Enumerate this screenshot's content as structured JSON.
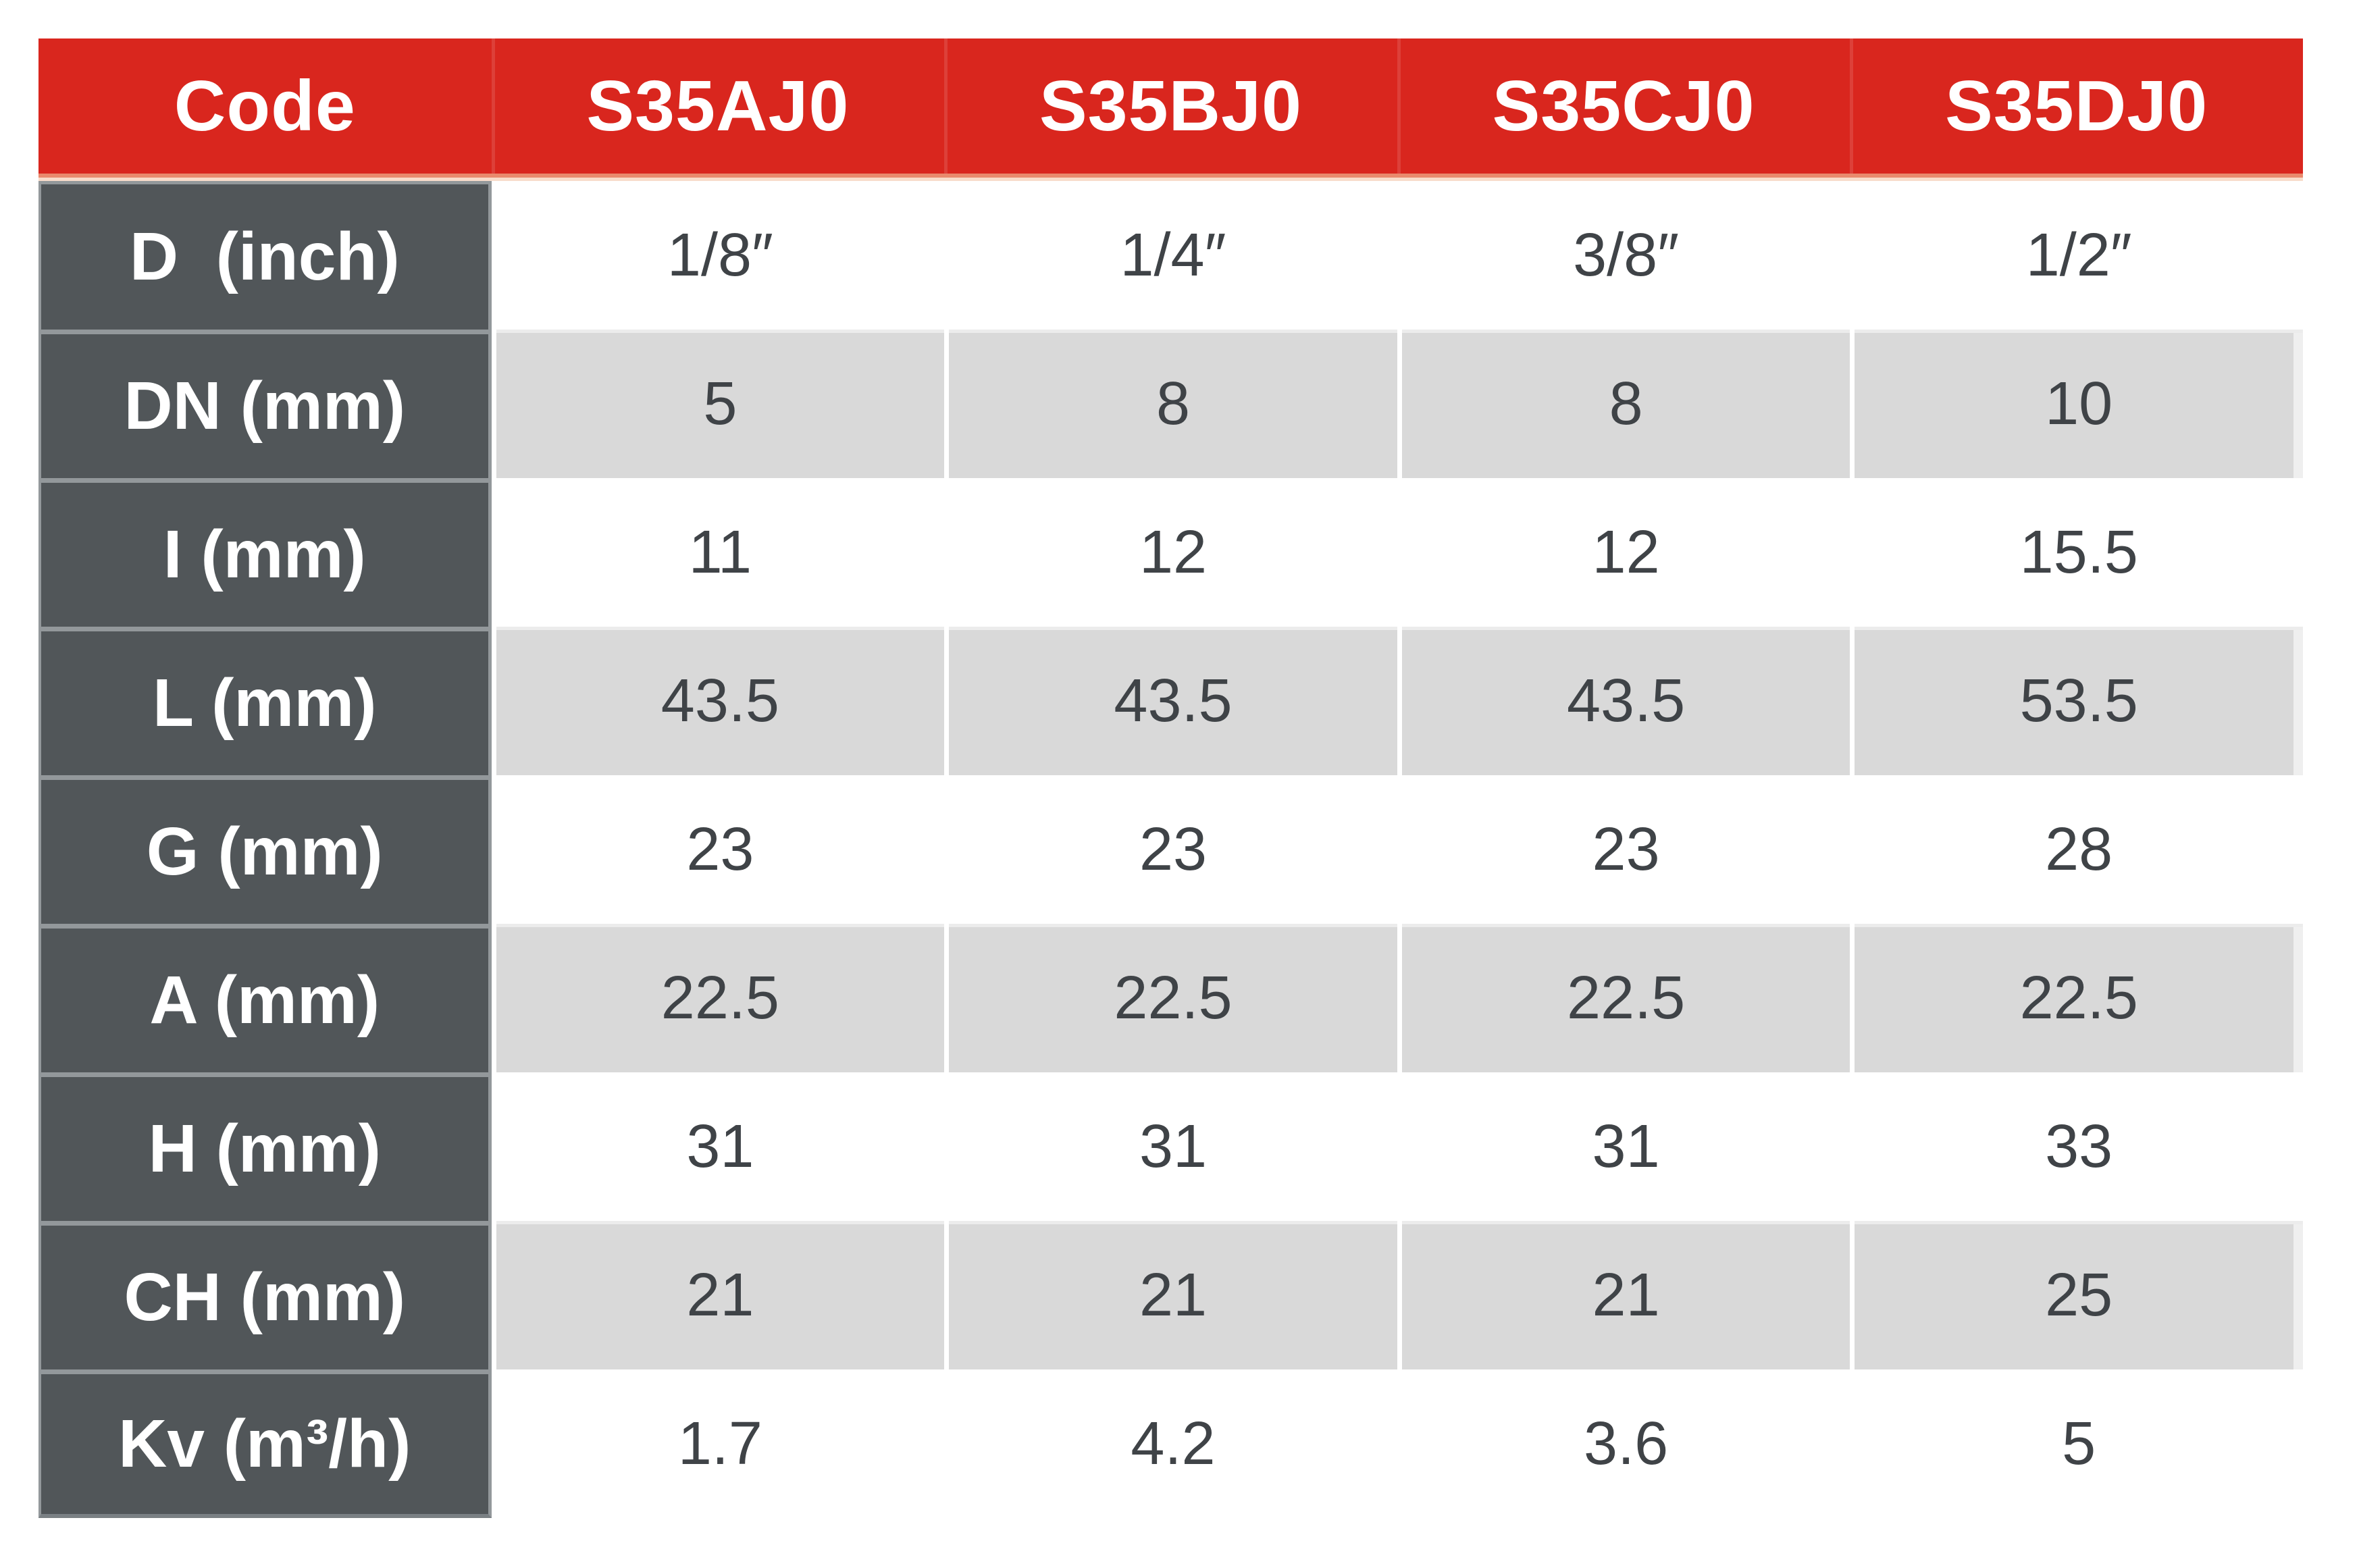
{
  "table": {
    "header": {
      "code_label": "Code",
      "columns": [
        "S35AJ0",
        "S35BJ0",
        "S35CJ0",
        "S35DJ0"
      ]
    },
    "rows": [
      {
        "label": "D  (inch)",
        "shade": "white",
        "values": [
          "1/8″",
          "1/4″",
          "3/8″",
          "1/2″"
        ]
      },
      {
        "label": "DN (mm)",
        "shade": "gray",
        "values": [
          "5",
          "8",
          "8",
          "10"
        ]
      },
      {
        "label": "I (mm)",
        "shade": "white",
        "values": [
          "11",
          "12",
          "12",
          "15.5"
        ]
      },
      {
        "label": "L (mm)",
        "shade": "gray",
        "values": [
          "43.5",
          "43.5",
          "43.5",
          "53.5"
        ]
      },
      {
        "label": "G (mm)",
        "shade": "white",
        "values": [
          "23",
          "23",
          "23",
          "28"
        ]
      },
      {
        "label": "A (mm)",
        "shade": "gray",
        "values": [
          "22.5",
          "22.5",
          "22.5",
          "22.5"
        ]
      },
      {
        "label": "H (mm)",
        "shade": "white",
        "values": [
          "31",
          "31",
          "31",
          "33"
        ]
      },
      {
        "label": "CH (mm)",
        "shade": "gray",
        "values": [
          "21",
          "21",
          "21",
          "25"
        ]
      },
      {
        "label": "Kv (m³/h)",
        "shade": "white",
        "values": [
          "1.7",
          "4.2",
          "3.6",
          "5"
        ]
      }
    ]
  },
  "colors": {
    "header_red": "#D9261E",
    "header_border_salmon": "#E98A6D",
    "header_border_peach": "#F8DCCB",
    "header_text": "#FFFFFF",
    "label_bg": "#515659",
    "label_border": "#93989B",
    "row_gray": "#D9D9D9",
    "row_white": "#FFFFFF",
    "data_text": "#3F4347"
  }
}
